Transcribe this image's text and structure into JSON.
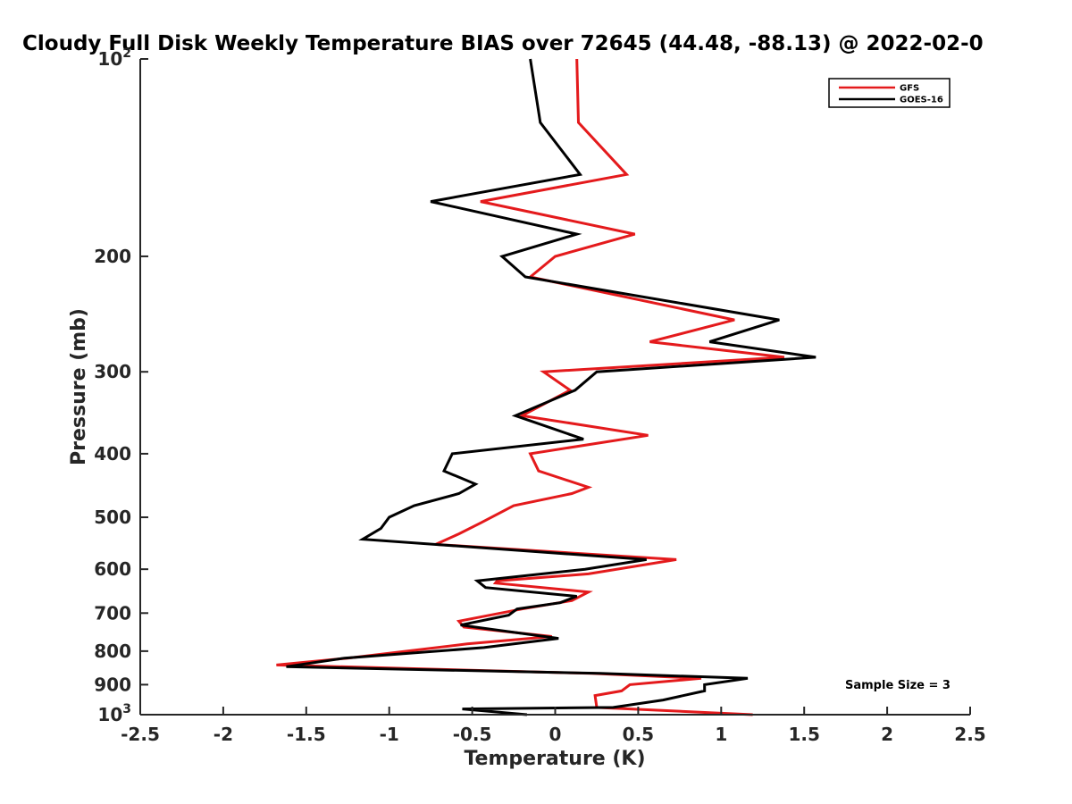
{
  "chart_data": {
    "type": "line",
    "title": "Cloudy Full Disk Weekly Temperature BIAS over 72645 (44.48, -88.13) @ 2022-02-0",
    "xlabel": "Temperature (K)",
    "ylabel": "Pressure (mb)",
    "xlim": [
      -2.5,
      2.5
    ],
    "ylim": [
      100,
      1000
    ],
    "y_scale": "log",
    "y_reversed": true,
    "grid": false,
    "legend_position": "top-right",
    "x_ticks": [
      {
        "value": -2.5,
        "label": "-2.5"
      },
      {
        "value": -2,
        "label": "-2"
      },
      {
        "value": -1.5,
        "label": "-1.5"
      },
      {
        "value": -1,
        "label": "-1"
      },
      {
        "value": -0.5,
        "label": "-0.5"
      },
      {
        "value": 0,
        "label": "0"
      },
      {
        "value": 0.5,
        "label": "0.5"
      },
      {
        "value": 1,
        "label": "1"
      },
      {
        "value": 1.5,
        "label": "1.5"
      },
      {
        "value": 2,
        "label": "2"
      },
      {
        "value": 2.5,
        "label": "2.5"
      }
    ],
    "y_ticks": [
      {
        "value": 100,
        "label": "10",
        "sup": "2"
      },
      {
        "value": 200,
        "label": "200"
      },
      {
        "value": 300,
        "label": "300"
      },
      {
        "value": 400,
        "label": "400"
      },
      {
        "value": 500,
        "label": "500"
      },
      {
        "value": 600,
        "label": "600"
      },
      {
        "value": 700,
        "label": "700"
      },
      {
        "value": 800,
        "label": "800"
      },
      {
        "value": 900,
        "label": "900"
      },
      {
        "value": 1000,
        "label": "10",
        "sup": "3"
      }
    ],
    "annotation": "Sample Size = 3",
    "series": [
      {
        "name": "GFS",
        "color": "#e41a1c",
        "points": [
          {
            "x": 0.13,
            "p": 100
          },
          {
            "x": 0.14,
            "p": 125
          },
          {
            "x": 0.43,
            "p": 150
          },
          {
            "x": -0.45,
            "p": 165
          },
          {
            "x": 0.48,
            "p": 185
          },
          {
            "x": 0,
            "p": 200
          },
          {
            "x": -0.15,
            "p": 215
          },
          {
            "x": 1.08,
            "p": 250
          },
          {
            "x": 0.57,
            "p": 270
          },
          {
            "x": 1.38,
            "p": 285
          },
          {
            "x": -0.07,
            "p": 300
          },
          {
            "x": 0.09,
            "p": 320
          },
          {
            "x": -0.2,
            "p": 350
          },
          {
            "x": 0.56,
            "p": 375
          },
          {
            "x": -0.15,
            "p": 400
          },
          {
            "x": -0.1,
            "p": 425
          },
          {
            "x": 0.2,
            "p": 450
          },
          {
            "x": 0.1,
            "p": 460
          },
          {
            "x": -0.25,
            "p": 480
          },
          {
            "x": -0.45,
            "p": 510
          },
          {
            "x": -0.58,
            "p": 530
          },
          {
            "x": -0.72,
            "p": 550
          },
          {
            "x": 0.73,
            "p": 580
          },
          {
            "x": 0.2,
            "p": 610
          },
          {
            "x": -0.35,
            "p": 625
          },
          {
            "x": -0.36,
            "p": 630
          },
          {
            "x": 0.2,
            "p": 650
          },
          {
            "x": 0.1,
            "p": 670
          },
          {
            "x": -0.2,
            "p": 690
          },
          {
            "x": -0.58,
            "p": 720
          },
          {
            "x": -0.55,
            "p": 735
          },
          {
            "x": -0.02,
            "p": 760
          },
          {
            "x": -0.53,
            "p": 780
          },
          {
            "x": -1.25,
            "p": 820
          },
          {
            "x": -1.68,
            "p": 840
          },
          {
            "x": 0.22,
            "p": 865
          },
          {
            "x": 0.88,
            "p": 880
          },
          {
            "x": 0.45,
            "p": 900
          },
          {
            "x": 0.4,
            "p": 920
          },
          {
            "x": 0.24,
            "p": 935
          },
          {
            "x": 0.25,
            "p": 975
          },
          {
            "x": 1.19,
            "p": 1000
          }
        ]
      },
      {
        "name": "GOES-16",
        "color": "#000000",
        "points": [
          {
            "x": -0.15,
            "p": 100
          },
          {
            "x": -0.09,
            "p": 125
          },
          {
            "x": 0.15,
            "p": 150
          },
          {
            "x": -0.75,
            "p": 165
          },
          {
            "x": 0.13,
            "p": 185
          },
          {
            "x": -0.32,
            "p": 200
          },
          {
            "x": -0.18,
            "p": 215
          },
          {
            "x": 1.35,
            "p": 250
          },
          {
            "x": 0.93,
            "p": 270
          },
          {
            "x": 1.57,
            "p": 285
          },
          {
            "x": 0.25,
            "p": 300
          },
          {
            "x": 0.12,
            "p": 320
          },
          {
            "x": -0.24,
            "p": 350
          },
          {
            "x": 0.17,
            "p": 380
          },
          {
            "x": -0.62,
            "p": 400
          },
          {
            "x": -0.67,
            "p": 425
          },
          {
            "x": -0.48,
            "p": 445
          },
          {
            "x": -0.58,
            "p": 460
          },
          {
            "x": -0.85,
            "p": 480
          },
          {
            "x": -1,
            "p": 500
          },
          {
            "x": -1.05,
            "p": 520
          },
          {
            "x": -1.16,
            "p": 540
          },
          {
            "x": 0.55,
            "p": 580
          },
          {
            "x": 0.18,
            "p": 600
          },
          {
            "x": -0.47,
            "p": 625
          },
          {
            "x": -0.42,
            "p": 640
          },
          {
            "x": 0.13,
            "p": 660
          },
          {
            "x": 0.03,
            "p": 675
          },
          {
            "x": -0.23,
            "p": 690
          },
          {
            "x": -0.28,
            "p": 705
          },
          {
            "x": -0.57,
            "p": 730
          },
          {
            "x": 0.02,
            "p": 765
          },
          {
            "x": -0.43,
            "p": 790
          },
          {
            "x": -1.27,
            "p": 820
          },
          {
            "x": -1.62,
            "p": 845
          },
          {
            "x": 0.27,
            "p": 865
          },
          {
            "x": 1.16,
            "p": 880
          },
          {
            "x": 0.9,
            "p": 900
          },
          {
            "x": 0.9,
            "p": 920
          },
          {
            "x": 0.65,
            "p": 950
          },
          {
            "x": 0.35,
            "p": 975
          },
          {
            "x": -0.56,
            "p": 980
          },
          {
            "x": -0.17,
            "p": 1000
          }
        ]
      }
    ]
  }
}
